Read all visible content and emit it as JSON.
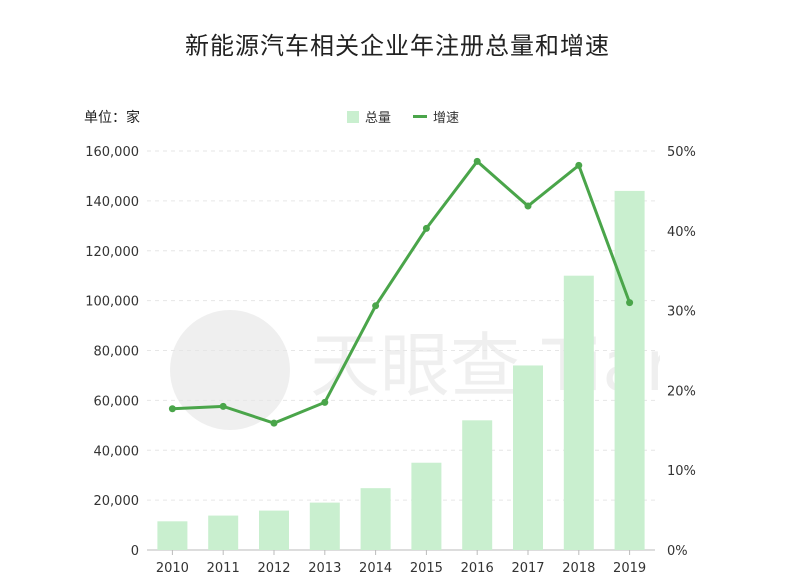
{
  "chart_data": {
    "type": "bar",
    "title": "新能源汽车相关企业年注册总量和增速",
    "unit_label": "单位：家",
    "categories": [
      "2010",
      "2011",
      "2012",
      "2013",
      "2014",
      "2015",
      "2016",
      "2017",
      "2018",
      "2019"
    ],
    "series": [
      {
        "name": "总量",
        "type": "bar",
        "axis": "left",
        "color": "#c9efcf",
        "values": [
          11500,
          13800,
          15800,
          19000,
          24800,
          35000,
          52000,
          74000,
          110000,
          144000
        ]
      },
      {
        "name": "增速",
        "type": "line",
        "axis": "right",
        "color": "#4aa54a",
        "values": [
          0.177,
          0.18,
          0.159,
          0.185,
          0.306,
          0.403,
          0.487,
          0.431,
          0.482,
          0.31
        ]
      }
    ],
    "y_left": {
      "ylim": [
        0,
        160000
      ],
      "ticks": [
        "0",
        "20,000",
        "40,000",
        "60,000",
        "80,000",
        "100,000",
        "120,000",
        "140,000",
        "160,000"
      ]
    },
    "y_right": {
      "ylim": [
        0,
        0.5
      ],
      "ticks": [
        "0%",
        "10%",
        "20%",
        "30%",
        "40%",
        "50%"
      ]
    },
    "grid": true,
    "legend": "top-center",
    "watermark": "天眼查 TianYanCha.com"
  }
}
